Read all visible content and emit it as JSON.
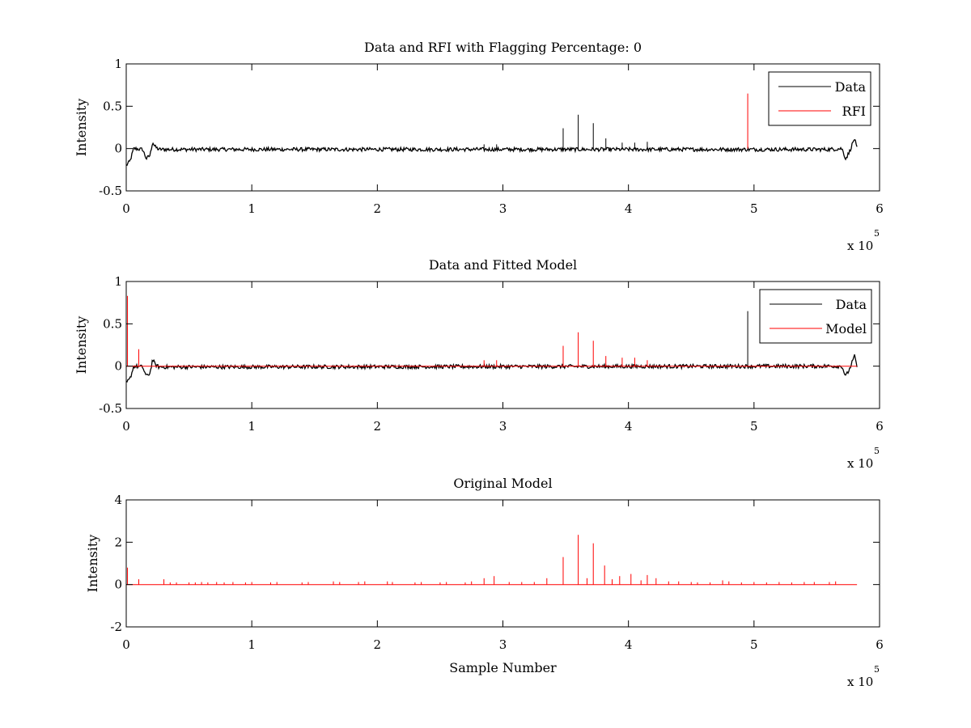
{
  "chart_data": [
    {
      "type": "line",
      "title": "Data and RFI with Flagging Percentage: 0",
      "xlabel": "",
      "ylabel": "Intensity",
      "xlim": [
        0,
        600000
      ],
      "ylim": [
        -0.5,
        1
      ],
      "xticks": [
        0,
        1,
        2,
        3,
        4,
        5,
        6
      ],
      "yticks": [
        "-0.5",
        "0",
        "0.5",
        "1"
      ],
      "x_multiplier": "x 10",
      "x_exponent": "5",
      "legend_position": "top-right",
      "series": [
        {
          "name": "Data",
          "color": "#000000",
          "baseline": [
            [
              0,
              -0.2
            ],
            [
              3000,
              -0.15
            ],
            [
              6000,
              0.0
            ],
            [
              13000,
              -0.01
            ],
            [
              16000,
              -0.12
            ],
            [
              19000,
              -0.08
            ],
            [
              21000,
              0.08
            ],
            [
              23000,
              0.02
            ],
            [
              26000,
              -0.01
            ],
            [
              560000,
              -0.01
            ],
            [
              570000,
              0.0
            ],
            [
              573000,
              -0.12
            ],
            [
              576000,
              -0.04
            ],
            [
              580000,
              0.12
            ],
            [
              582000,
              0.0
            ]
          ],
          "spikes": [
            [
              348000,
              0.24
            ],
            [
              360000,
              0.4
            ],
            [
              372000,
              0.3
            ],
            [
              382000,
              0.12
            ],
            [
              395000,
              0.07
            ],
            [
              405000,
              0.07
            ],
            [
              415000,
              0.08
            ],
            [
              285000,
              0.05
            ],
            [
              295000,
              0.05
            ]
          ]
        },
        {
          "name": "RFI",
          "color": "#ff0000",
          "spikes": [
            [
              495000,
              0.65
            ]
          ]
        }
      ]
    },
    {
      "type": "line",
      "title": "Data and Fitted Model",
      "xlabel": "",
      "ylabel": "Intensity",
      "xlim": [
        0,
        600000
      ],
      "ylim": [
        -0.5,
        1
      ],
      "xticks": [
        0,
        1,
        2,
        3,
        4,
        5,
        6
      ],
      "yticks": [
        "-0.5",
        "0",
        "0.5",
        "1"
      ],
      "x_multiplier": "x 10",
      "x_exponent": "5",
      "legend_position": "top-right",
      "series": [
        {
          "name": "Data",
          "color": "#000000",
          "baseline": [
            [
              0,
              -0.2
            ],
            [
              3000,
              -0.15
            ],
            [
              6000,
              0.0
            ],
            [
              13000,
              -0.01
            ],
            [
              16000,
              -0.12
            ],
            [
              19000,
              -0.08
            ],
            [
              21000,
              0.08
            ],
            [
              23000,
              0.02
            ],
            [
              26000,
              -0.01
            ],
            [
              560000,
              0.0
            ],
            [
              570000,
              0.0
            ],
            [
              573000,
              -0.12
            ],
            [
              576000,
              -0.04
            ],
            [
              580000,
              0.12
            ],
            [
              582000,
              0.0
            ]
          ],
          "spikes": [
            [
              495000,
              0.65
            ]
          ]
        },
        {
          "name": "Model",
          "color": "#ff0000",
          "baseline": [
            [
              0,
              0.0
            ],
            [
              582000,
              0.0
            ]
          ],
          "spikes": [
            [
              1000,
              0.83
            ],
            [
              10000,
              0.2
            ],
            [
              285000,
              0.07
            ],
            [
              295000,
              0.07
            ],
            [
              348000,
              0.24
            ],
            [
              360000,
              0.4
            ],
            [
              372000,
              0.3
            ],
            [
              382000,
              0.12
            ],
            [
              395000,
              0.1
            ],
            [
              405000,
              0.1
            ],
            [
              415000,
              0.07
            ]
          ]
        }
      ]
    },
    {
      "type": "line",
      "title": "Original Model",
      "xlabel": "Sample Number",
      "ylabel": "Intensity",
      "xlim": [
        0,
        600000
      ],
      "ylim": [
        -2,
        4
      ],
      "xticks": [
        0,
        1,
        2,
        3,
        4,
        5,
        6
      ],
      "yticks": [
        "-2",
        "0",
        "2",
        "4"
      ],
      "x_multiplier": "x 10",
      "x_exponent": "5",
      "series": [
        {
          "color": "#ff0000",
          "baseline": [
            [
              0,
              0.0
            ],
            [
              582000,
              0.0
            ]
          ],
          "spikes": [
            [
              1000,
              0.8
            ],
            [
              10000,
              0.25
            ],
            [
              30000,
              0.25
            ],
            [
              35000,
              0.1
            ],
            [
              40000,
              0.1
            ],
            [
              50000,
              0.1
            ],
            [
              55000,
              0.1
            ],
            [
              60000,
              0.12
            ],
            [
              65000,
              0.1
            ],
            [
              72000,
              0.12
            ],
            [
              78000,
              0.1
            ],
            [
              85000,
              0.12
            ],
            [
              95000,
              0.1
            ],
            [
              100000,
              0.12
            ],
            [
              115000,
              0.1
            ],
            [
              120000,
              0.12
            ],
            [
              140000,
              0.1
            ],
            [
              145000,
              0.12
            ],
            [
              165000,
              0.15
            ],
            [
              170000,
              0.12
            ],
            [
              185000,
              0.12
            ],
            [
              190000,
              0.15
            ],
            [
              208000,
              0.15
            ],
            [
              212000,
              0.12
            ],
            [
              230000,
              0.1
            ],
            [
              235000,
              0.12
            ],
            [
              250000,
              0.1
            ],
            [
              255000,
              0.12
            ],
            [
              270000,
              0.1
            ],
            [
              275000,
              0.15
            ],
            [
              285000,
              0.3
            ],
            [
              293000,
              0.4
            ],
            [
              305000,
              0.12
            ],
            [
              315000,
              0.12
            ],
            [
              325000,
              0.12
            ],
            [
              335000,
              0.3
            ],
            [
              348000,
              1.3
            ],
            [
              360000,
              2.35
            ],
            [
              367000,
              0.3
            ],
            [
              372000,
              1.95
            ],
            [
              381000,
              0.9
            ],
            [
              387000,
              0.25
            ],
            [
              393000,
              0.4
            ],
            [
              402000,
              0.5
            ],
            [
              410000,
              0.2
            ],
            [
              415000,
              0.45
            ],
            [
              422000,
              0.3
            ],
            [
              432000,
              0.15
            ],
            [
              440000,
              0.15
            ],
            [
              450000,
              0.12
            ],
            [
              455000,
              0.1
            ],
            [
              465000,
              0.1
            ],
            [
              475000,
              0.2
            ],
            [
              480000,
              0.15
            ],
            [
              490000,
              0.1
            ],
            [
              500000,
              0.12
            ],
            [
              510000,
              0.1
            ],
            [
              520000,
              0.12
            ],
            [
              530000,
              0.1
            ],
            [
              540000,
              0.12
            ],
            [
              548000,
              0.12
            ],
            [
              560000,
              0.12
            ],
            [
              565000,
              0.15
            ]
          ]
        }
      ]
    }
  ]
}
